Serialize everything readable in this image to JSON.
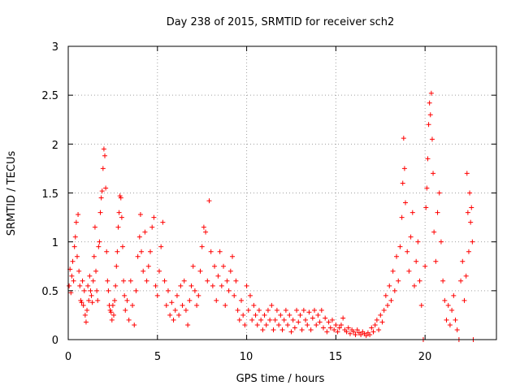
{
  "chart_data": {
    "type": "scatter",
    "title": "Day 238 of 2015, SRMTID for receiver sch2",
    "xlabel": "GPS time / hours",
    "ylabel": "SRMTID / TECUs",
    "xlim": [
      0,
      24
    ],
    "ylim": [
      0,
      3
    ],
    "xticks": [
      "0",
      "5",
      "10",
      "15",
      "20"
    ],
    "yticks": [
      "0",
      "0.5",
      "1",
      "1.5",
      "2",
      "2.5",
      "3"
    ],
    "grid": true,
    "marker": "+",
    "series": [
      {
        "name": "sch2",
        "color": "#ff0000",
        "points": [
          [
            0.05,
            0.55
          ],
          [
            0.1,
            0.72
          ],
          [
            0.15,
            0.48
          ],
          [
            0.2,
            0.65
          ],
          [
            0.25,
            0.8
          ],
          [
            0.3,
            0.6
          ],
          [
            0.35,
            0.95
          ],
          [
            0.4,
            1.05
          ],
          [
            0.45,
            1.2
          ],
          [
            0.5,
            0.85
          ],
          [
            0.55,
            1.28
          ],
          [
            0.6,
            0.7
          ],
          [
            0.65,
            0.55
          ],
          [
            0.7,
            0.4
          ],
          [
            0.75,
            0.38
          ],
          [
            0.8,
            0.6
          ],
          [
            0.85,
            0.35
          ],
          [
            0.9,
            0.5
          ],
          [
            0.95,
            0.25
          ],
          [
            1.0,
            0.18
          ],
          [
            1.05,
            0.3
          ],
          [
            1.1,
            0.55
          ],
          [
            1.15,
            0.4
          ],
          [
            1.2,
            0.65
          ],
          [
            1.25,
            0.5
          ],
          [
            1.3,
            0.45
          ],
          [
            1.35,
            0.38
          ],
          [
            1.4,
            0.6
          ],
          [
            1.45,
            0.85
          ],
          [
            1.5,
            1.15
          ],
          [
            1.55,
            0.7
          ],
          [
            1.6,
            0.5
          ],
          [
            1.65,
            0.4
          ],
          [
            1.7,
            0.95
          ],
          [
            1.75,
            1.0
          ],
          [
            1.8,
            1.3
          ],
          [
            1.85,
            1.45
          ],
          [
            1.9,
            1.52
          ],
          [
            1.95,
            1.75
          ],
          [
            2.0,
            1.95
          ],
          [
            2.05,
            1.88
          ],
          [
            2.1,
            1.55
          ],
          [
            2.15,
            0.9
          ],
          [
            2.2,
            0.6
          ],
          [
            2.25,
            0.5
          ],
          [
            2.3,
            0.35
          ],
          [
            2.35,
            0.3
          ],
          [
            2.4,
            0.28
          ],
          [
            2.45,
            0.2
          ],
          [
            2.5,
            0.35
          ],
          [
            2.55,
            0.25
          ],
          [
            2.6,
            0.4
          ],
          [
            2.65,
            0.55
          ],
          [
            2.7,
            0.75
          ],
          [
            2.75,
            0.9
          ],
          [
            2.8,
            1.15
          ],
          [
            2.85,
            1.3
          ],
          [
            2.9,
            1.47
          ],
          [
            2.95,
            1.45
          ],
          [
            3.0,
            1.25
          ],
          [
            3.05,
            0.95
          ],
          [
            3.1,
            0.6
          ],
          [
            3.15,
            0.45
          ],
          [
            3.2,
            0.3
          ],
          [
            3.3,
            0.4
          ],
          [
            3.4,
            0.2
          ],
          [
            3.5,
            0.6
          ],
          [
            3.6,
            0.35
          ],
          [
            3.7,
            0.15
          ],
          [
            3.8,
            0.5
          ],
          [
            3.9,
            0.85
          ],
          [
            4.0,
            1.05
          ],
          [
            4.05,
            1.28
          ],
          [
            4.1,
            0.9
          ],
          [
            4.2,
            0.7
          ],
          [
            4.3,
            1.1
          ],
          [
            4.4,
            0.6
          ],
          [
            4.5,
            0.75
          ],
          [
            4.6,
            0.9
          ],
          [
            4.7,
            1.15
          ],
          [
            4.8,
            1.25
          ],
          [
            4.9,
            0.55
          ],
          [
            5.0,
            0.45
          ],
          [
            5.1,
            0.7
          ],
          [
            5.2,
            0.95
          ],
          [
            5.3,
            1.2
          ],
          [
            5.4,
            0.6
          ],
          [
            5.5,
            0.35
          ],
          [
            5.6,
            0.5
          ],
          [
            5.7,
            0.25
          ],
          [
            5.8,
            0.38
          ],
          [
            5.9,
            0.2
          ],
          [
            6.0,
            0.3
          ],
          [
            6.1,
            0.45
          ],
          [
            6.2,
            0.25
          ],
          [
            6.3,
            0.55
          ],
          [
            6.4,
            0.35
          ],
          [
            6.5,
            0.6
          ],
          [
            6.6,
            0.3
          ],
          [
            6.7,
            0.15
          ],
          [
            6.8,
            0.4
          ],
          [
            6.9,
            0.55
          ],
          [
            7.0,
            0.75
          ],
          [
            7.1,
            0.5
          ],
          [
            7.2,
            0.35
          ],
          [
            7.3,
            0.45
          ],
          [
            7.4,
            0.7
          ],
          [
            7.5,
            0.95
          ],
          [
            7.6,
            1.15
          ],
          [
            7.7,
            1.1
          ],
          [
            7.8,
            0.6
          ],
          [
            7.9,
            1.42
          ],
          [
            8.0,
            0.9
          ],
          [
            8.1,
            0.55
          ],
          [
            8.2,
            0.75
          ],
          [
            8.3,
            0.4
          ],
          [
            8.4,
            0.65
          ],
          [
            8.5,
            0.9
          ],
          [
            8.6,
            0.55
          ],
          [
            8.7,
            0.75
          ],
          [
            8.8,
            0.35
          ],
          [
            8.9,
            0.6
          ],
          [
            9.0,
            0.5
          ],
          [
            9.1,
            0.7
          ],
          [
            9.2,
            0.85
          ],
          [
            9.3,
            0.45
          ],
          [
            9.4,
            0.6
          ],
          [
            9.5,
            0.3
          ],
          [
            9.6,
            0.2
          ],
          [
            9.7,
            0.4
          ],
          [
            9.8,
            0.25
          ],
          [
            9.9,
            0.15
          ],
          [
            10.0,
            0.55
          ],
          [
            10.1,
            0.3
          ],
          [
            10.2,
            0.45
          ],
          [
            10.3,
            0.2
          ],
          [
            10.4,
            0.35
          ],
          [
            10.5,
            0.25
          ],
          [
            10.6,
            0.15
          ],
          [
            10.7,
            0.3
          ],
          [
            10.8,
            0.2
          ],
          [
            10.9,
            0.1
          ],
          [
            11.0,
            0.25
          ],
          [
            11.1,
            0.15
          ],
          [
            11.2,
            0.3
          ],
          [
            11.3,
            0.2
          ],
          [
            11.4,
            0.35
          ],
          [
            11.5,
            0.1
          ],
          [
            11.6,
            0.2
          ],
          [
            11.7,
            0.3
          ],
          [
            11.8,
            0.15
          ],
          [
            11.9,
            0.25
          ],
          [
            12.0,
            0.1
          ],
          [
            12.1,
            0.2
          ],
          [
            12.2,
            0.3
          ],
          [
            12.3,
            0.15
          ],
          [
            12.4,
            0.25
          ],
          [
            12.5,
            0.08
          ],
          [
            12.6,
            0.2
          ],
          [
            12.7,
            0.12
          ],
          [
            12.8,
            0.3
          ],
          [
            12.9,
            0.18
          ],
          [
            13.0,
            0.25
          ],
          [
            13.1,
            0.1
          ],
          [
            13.2,
            0.3
          ],
          [
            13.3,
            0.2
          ],
          [
            13.4,
            0.15
          ],
          [
            13.5,
            0.28
          ],
          [
            13.6,
            0.1
          ],
          [
            13.7,
            0.22
          ],
          [
            13.8,
            0.3
          ],
          [
            13.9,
            0.15
          ],
          [
            14.0,
            0.25
          ],
          [
            14.1,
            0.18
          ],
          [
            14.2,
            0.3
          ],
          [
            14.3,
            0.12
          ],
          [
            14.4,
            0.22
          ],
          [
            14.5,
            0.08
          ],
          [
            14.6,
            0.18
          ],
          [
            14.7,
            0.12
          ],
          [
            14.8,
            0.2
          ],
          [
            14.9,
            0.1
          ],
          [
            15.0,
            0.15
          ],
          [
            15.1,
            0.08
          ],
          [
            15.2,
            0.12
          ],
          [
            15.3,
            0.15
          ],
          [
            15.4,
            0.22
          ],
          [
            15.5,
            0.1
          ],
          [
            15.6,
            0.08
          ],
          [
            15.7,
            0.12
          ],
          [
            15.8,
            0.06
          ],
          [
            15.9,
            0.1
          ],
          [
            16.0,
            0.08
          ],
          [
            16.1,
            0.05
          ],
          [
            16.2,
            0.1
          ],
          [
            16.3,
            0.07
          ],
          [
            16.4,
            0.05
          ],
          [
            16.5,
            0.08
          ],
          [
            16.6,
            0.06
          ],
          [
            16.7,
            0.04
          ],
          [
            16.8,
            0.07
          ],
          [
            16.9,
            0.05
          ],
          [
            17.0,
            0.12
          ],
          [
            17.1,
            0.08
          ],
          [
            17.2,
            0.15
          ],
          [
            17.3,
            0.2
          ],
          [
            17.4,
            0.1
          ],
          [
            17.5,
            0.25
          ],
          [
            17.6,
            0.18
          ],
          [
            17.7,
            0.3
          ],
          [
            17.8,
            0.45
          ],
          [
            17.9,
            0.35
          ],
          [
            18.0,
            0.55
          ],
          [
            18.1,
            0.4
          ],
          [
            18.2,
            0.7
          ],
          [
            18.3,
            0.5
          ],
          [
            18.4,
            0.85
          ],
          [
            18.5,
            0.6
          ],
          [
            18.6,
            0.95
          ],
          [
            18.7,
            1.25
          ],
          [
            18.75,
            1.6
          ],
          [
            18.8,
            2.06
          ],
          [
            18.85,
            1.75
          ],
          [
            18.9,
            1.4
          ],
          [
            19.0,
            0.9
          ],
          [
            19.1,
            0.7
          ],
          [
            19.2,
            1.05
          ],
          [
            19.3,
            1.3
          ],
          [
            19.4,
            0.55
          ],
          [
            19.5,
            0.8
          ],
          [
            19.6,
            1.0
          ],
          [
            19.7,
            0.6
          ],
          [
            19.8,
            0.35
          ],
          [
            19.9,
            0.0
          ],
          [
            20.0,
            0.75
          ],
          [
            20.05,
            1.35
          ],
          [
            20.1,
            1.55
          ],
          [
            20.15,
            1.85
          ],
          [
            20.2,
            2.2
          ],
          [
            20.25,
            2.42
          ],
          [
            20.3,
            2.3
          ],
          [
            20.35,
            2.52
          ],
          [
            20.4,
            2.05
          ],
          [
            20.45,
            1.7
          ],
          [
            20.5,
            1.1
          ],
          [
            20.6,
            0.8
          ],
          [
            20.7,
            1.3
          ],
          [
            20.8,
            1.5
          ],
          [
            20.9,
            1.0
          ],
          [
            21.0,
            0.6
          ],
          [
            21.1,
            0.4
          ],
          [
            21.2,
            0.2
          ],
          [
            21.3,
            0.35
          ],
          [
            21.4,
            0.15
          ],
          [
            21.5,
            0.3
          ],
          [
            21.6,
            0.45
          ],
          [
            21.7,
            0.2
          ],
          [
            21.8,
            0.1
          ],
          [
            21.9,
            0.0
          ],
          [
            22.0,
            0.6
          ],
          [
            22.1,
            0.8
          ],
          [
            22.2,
            0.4
          ],
          [
            22.3,
            0.65
          ],
          [
            22.35,
            1.7
          ],
          [
            22.4,
            1.3
          ],
          [
            22.45,
            0.9
          ],
          [
            22.5,
            1.5
          ],
          [
            22.55,
            1.2
          ],
          [
            22.6,
            1.35
          ],
          [
            22.65,
            1.0
          ],
          [
            22.7,
            0.0
          ]
        ]
      }
    ]
  }
}
